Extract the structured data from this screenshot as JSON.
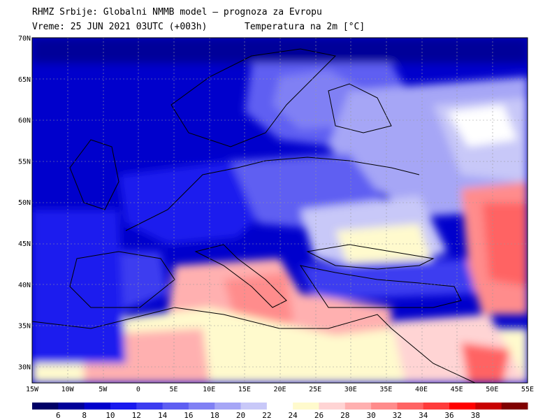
{
  "header": {
    "line1": "RHMZ Srbije: Globalni NMMB model — prognoza za Evropu",
    "line2": "Vreme: 25 JUN 2021 03UTC (+003h)",
    "line3": "Temperatura na 2m [°C]"
  },
  "axes": {
    "lat_labels": [
      "70N",
      "65N",
      "60N",
      "55N",
      "50N",
      "45N",
      "40N",
      "35N",
      "30N"
    ],
    "lon_labels": [
      "15W",
      "10W",
      "5W",
      "0",
      "5E",
      "10E",
      "15E",
      "20E",
      "25E",
      "30E",
      "35E",
      "40E",
      "45E",
      "50E",
      "55E"
    ]
  },
  "legend": {
    "colors": [
      "#000066",
      "#000099",
      "#0000cc",
      "#1a1aee",
      "#3c3cf0",
      "#5e5ef2",
      "#8080f4",
      "#a6a6f6",
      "#c8c8f8",
      "#ffffff",
      "#fffacd",
      "#ffd4d4",
      "#ffb0b0",
      "#ff8c8c",
      "#ff6464",
      "#ff3c3c",
      "#ff0000",
      "#c80000",
      "#800000"
    ],
    "labels": [
      "6",
      "8",
      "10",
      "12",
      "14",
      "16",
      "18",
      "20",
      "22",
      "24",
      "26",
      "28",
      "30",
      "32",
      "34",
      "36",
      "38"
    ]
  }
}
